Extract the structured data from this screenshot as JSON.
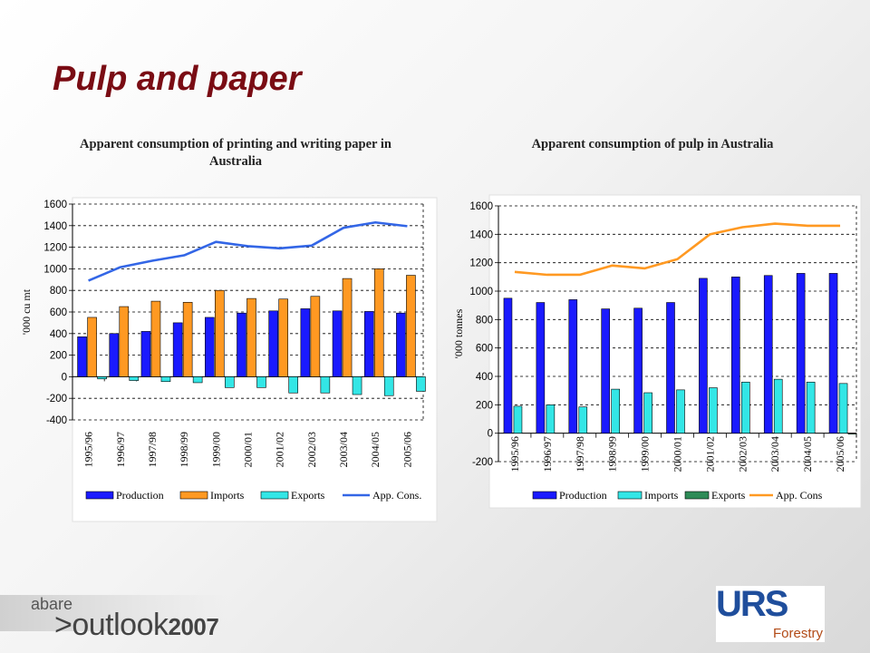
{
  "slide": {
    "title": "Pulp and paper"
  },
  "charts": [
    {
      "title": "Apparent consumption of printing and writing paper in Australia"
    },
    {
      "title": "Apparent consumption of pulp in Australia"
    }
  ],
  "chart_data": [
    {
      "type": "bar",
      "title": "Apparent consumption of printing and writing paper in Australia",
      "ylabel": "'000 cu mt",
      "xlabel": "",
      "ylim": [
        -400,
        1600
      ],
      "yticks": [
        -400,
        -200,
        0,
        200,
        400,
        600,
        800,
        1000,
        1200,
        1400,
        1600
      ],
      "grid": true,
      "legend": "bottom",
      "categories": [
        "1995/96",
        "1996/97",
        "1997/98",
        "1998/99",
        "1999/00",
        "2000/01",
        "2001/02",
        "2002/03",
        "2003/04",
        "2004/05",
        "2005/06"
      ],
      "series": [
        {
          "name": "Production",
          "kind": "bar",
          "color": "#1a1aff",
          "values": [
            370,
            400,
            420,
            500,
            550,
            590,
            610,
            630,
            610,
            605,
            590
          ]
        },
        {
          "name": "Imports",
          "kind": "bar",
          "color": "#ff9922",
          "values": [
            550,
            650,
            700,
            690,
            800,
            725,
            720,
            745,
            910,
            1000,
            940
          ]
        },
        {
          "name": "Exports",
          "kind": "bar",
          "color": "#33e6e6",
          "values": [
            -20,
            -35,
            -45,
            -55,
            -100,
            -100,
            -150,
            -150,
            -165,
            -175,
            -135
          ]
        },
        {
          "name": "App. Cons.",
          "kind": "line",
          "color": "#3366e6",
          "values": [
            890,
            1015,
            1075,
            1125,
            1250,
            1210,
            1190,
            1215,
            1380,
            1430,
            1395
          ]
        }
      ]
    },
    {
      "type": "bar",
      "title": "Apparent consumption of pulp in Australia",
      "ylabel": "'000 tonnes",
      "xlabel": "",
      "ylim": [
        -200,
        1600
      ],
      "yticks": [
        -200,
        0,
        200,
        400,
        600,
        800,
        1000,
        1200,
        1400,
        1600
      ],
      "grid": true,
      "legend": "bottom",
      "categories": [
        "1995/96",
        "1996/97",
        "1997/98",
        "1998/99",
        "1999/00",
        "2000/01",
        "2001/02",
        "2002/03",
        "2003/04",
        "2004/05",
        "2005/06"
      ],
      "series": [
        {
          "name": "Production",
          "kind": "bar",
          "color": "#1a1aff",
          "values": [
            950,
            920,
            940,
            875,
            880,
            920,
            1090,
            1100,
            1110,
            1125,
            1125
          ]
        },
        {
          "name": "Imports",
          "kind": "bar",
          "color": "#33e6e6",
          "values": [
            190,
            200,
            185,
            310,
            285,
            305,
            320,
            360,
            380,
            360,
            350
          ]
        },
        {
          "name": "Exports",
          "kind": "bar",
          "color": "#2e8b57",
          "values": [
            0,
            0,
            0,
            0,
            0,
            0,
            0,
            0,
            0,
            0,
            -5
          ]
        },
        {
          "name": "App. Cons",
          "kind": "line",
          "color": "#ff9922",
          "values": [
            1135,
            1115,
            1115,
            1180,
            1160,
            1225,
            1400,
            1450,
            1475,
            1460,
            1460
          ]
        }
      ]
    }
  ],
  "footer": {
    "abare": "abare",
    "outlook_prefix": ">",
    "outlook_word": "outlook",
    "outlook_year": "2007",
    "urs": "URS",
    "urs_sub": "Forestry"
  }
}
